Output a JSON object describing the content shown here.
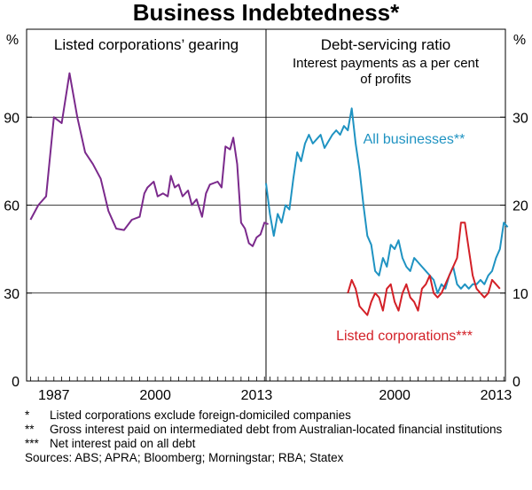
{
  "chart_data": {
    "title": "Business Indebtedness*",
    "panels": [
      {
        "type": "line",
        "title": "Listed corporations’ gearing",
        "subtitle": [
          "",
          ""
        ],
        "unit": "%",
        "ylim": [
          0,
          120
        ],
        "yticks": [
          0,
          30,
          60,
          90
        ],
        "xlim": [
          1983.5,
          2014.2
        ],
        "xticks": [
          1987,
          2000,
          2013
        ],
        "series": [
          {
            "name": "",
            "color": "#7b2a8c",
            "points": [
              [
                1984,
                55
              ],
              [
                1985,
                60
              ],
              [
                1986,
                63
              ],
              [
                1987,
                90
              ],
              [
                1988,
                88
              ],
              [
                1989,
                105
              ],
              [
                1990,
                90
              ],
              [
                1991,
                78
              ],
              [
                1992,
                74
              ],
              [
                1993,
                69
              ],
              [
                1994,
                58
              ],
              [
                1995,
                52
              ],
              [
                1996,
                51.5
              ],
              [
                1997,
                55
              ],
              [
                1998,
                56
              ],
              [
                1998.6,
                64
              ],
              [
                1999,
                66
              ],
              [
                1999.8,
                68
              ],
              [
                2000.3,
                63
              ],
              [
                2001,
                64
              ],
              [
                2001.6,
                63
              ],
              [
                2002,
                70
              ],
              [
                2002.5,
                66
              ],
              [
                2003,
                67
              ],
              [
                2003.5,
                63
              ],
              [
                2004.2,
                65
              ],
              [
                2004.7,
                60
              ],
              [
                2005.3,
                62
              ],
              [
                2006,
                56
              ],
              [
                2006.5,
                64
              ],
              [
                2007,
                67
              ],
              [
                2008,
                68
              ],
              [
                2008.5,
                66
              ],
              [
                2009,
                80
              ],
              [
                2009.6,
                79
              ],
              [
                2010,
                83
              ],
              [
                2010.5,
                74
              ],
              [
                2011,
                54
              ],
              [
                2011.5,
                52
              ],
              [
                2012,
                47
              ],
              [
                2012.5,
                46
              ],
              [
                2013,
                49
              ],
              [
                2013.5,
                50
              ],
              [
                2014,
                54
              ],
              [
                2014.5,
                53.5
              ]
            ]
          }
        ]
      },
      {
        "type": "line",
        "title": "Debt-servicing ratio",
        "subtitle": [
          "Interest payments as a per cent",
          "of profits"
        ],
        "unit": "%",
        "ylim": [
          0,
          40
        ],
        "yticks": [
          0,
          10,
          20,
          30
        ],
        "xlim": [
          1983.5,
          2014.2
        ],
        "xticks": [
          2000,
          2013
        ],
        "series": [
          {
            "name": "All businesses**",
            "color": "#1f93c2",
            "points": [
              [
                1983.5,
                22.5
              ],
              [
                1984,
                19
              ],
              [
                1984.5,
                16.5
              ],
              [
                1985,
                19
              ],
              [
                1985.5,
                18
              ],
              [
                1986,
                20
              ],
              [
                1986.5,
                19.5
              ],
              [
                1987,
                23
              ],
              [
                1987.5,
                26
              ],
              [
                1988,
                25
              ],
              [
                1988.5,
                27
              ],
              [
                1989,
                28
              ],
              [
                1989.5,
                27
              ],
              [
                1990,
                27.5
              ],
              [
                1990.5,
                28
              ],
              [
                1991,
                26.5
              ],
              [
                1992,
                28
              ],
              [
                1992.5,
                28.5
              ],
              [
                1993,
                28
              ],
              [
                1993.5,
                29
              ],
              [
                1994,
                28.5
              ],
              [
                1994.5,
                31
              ],
              [
                1995,
                27
              ],
              [
                1995.5,
                24
              ],
              [
                1996,
                20
              ],
              [
                1996.5,
                16.5
              ],
              [
                1997,
                15.5
              ],
              [
                1997.5,
                12.5
              ],
              [
                1998,
                12
              ],
              [
                1998.5,
                14
              ],
              [
                1999,
                13
              ],
              [
                1999.5,
                15.5
              ],
              [
                2000,
                15
              ],
              [
                2000.5,
                16
              ],
              [
                2001,
                14
              ],
              [
                2001.5,
                13
              ],
              [
                2002,
                12.5
              ],
              [
                2002.5,
                14
              ],
              [
                2003,
                13.5
              ],
              [
                2003.5,
                13
              ],
              [
                2004,
                12.5
              ],
              [
                2004.5,
                12
              ],
              [
                2005,
                11.5
              ],
              [
                2005.5,
                10
              ],
              [
                2006,
                11
              ],
              [
                2006.5,
                10.5
              ],
              [
                2007,
                12
              ],
              [
                2007.5,
                13
              ],
              [
                2008,
                11
              ],
              [
                2008.5,
                10.5
              ],
              [
                2009,
                11
              ],
              [
                2009.5,
                10.5
              ],
              [
                2010,
                11
              ],
              [
                2010.5,
                11
              ],
              [
                2011,
                11.5
              ],
              [
                2011.5,
                11
              ],
              [
                2012,
                12
              ],
              [
                2012.5,
                12.5
              ],
              [
                2013,
                14
              ],
              [
                2013.5,
                15
              ],
              [
                2014,
                18
              ],
              [
                2014.5,
                17.5
              ]
            ]
          },
          {
            "name": "Listed corporations***",
            "color": "#d32027",
            "points": [
              [
                1994,
                10
              ],
              [
                1994.5,
                11.5
              ],
              [
                1995,
                10.5
              ],
              [
                1995.5,
                8.5
              ],
              [
                1996,
                8
              ],
              [
                1996.5,
                7.5
              ],
              [
                1997,
                9
              ],
              [
                1997.5,
                10
              ],
              [
                1998,
                9.5
              ],
              [
                1998.5,
                8
              ],
              [
                1999,
                10.5
              ],
              [
                1999.5,
                11
              ],
              [
                2000,
                9
              ],
              [
                2000.5,
                8
              ],
              [
                2001,
                10
              ],
              [
                2001.5,
                11
              ],
              [
                2002,
                9.5
              ],
              [
                2002.5,
                9
              ],
              [
                2003,
                8
              ],
              [
                2003.5,
                10.5
              ],
              [
                2004,
                11
              ],
              [
                2004.5,
                12
              ],
              [
                2005,
                10
              ],
              [
                2005.5,
                9.5
              ],
              [
                2006,
                10
              ],
              [
                2006.5,
                11
              ],
              [
                2007,
                12
              ],
              [
                2007.5,
                13
              ],
              [
                2008,
                14
              ],
              [
                2008.5,
                18
              ],
              [
                2009,
                18
              ],
              [
                2009.5,
                15
              ],
              [
                2010,
                12
              ],
              [
                2010.5,
                10.5
              ],
              [
                2011,
                10
              ],
              [
                2011.5,
                9.5
              ],
              [
                2012,
                10
              ],
              [
                2012.5,
                11.5
              ],
              [
                2013,
                11
              ],
              [
                2013.5,
                10.5
              ]
            ]
          }
        ]
      }
    ],
    "notes": [
      {
        "mark": "*",
        "text": "Listed corporations exclude foreign-domiciled companies"
      },
      {
        "mark": "**",
        "text": "Gross interest paid on intermediated debt from Australian-located financial institutions"
      },
      {
        "mark": "***",
        "text": "Net interest paid on all debt"
      }
    ],
    "sources": "Sources: ABS; APRA; Bloomberg; Morningstar; RBA; Statex"
  }
}
